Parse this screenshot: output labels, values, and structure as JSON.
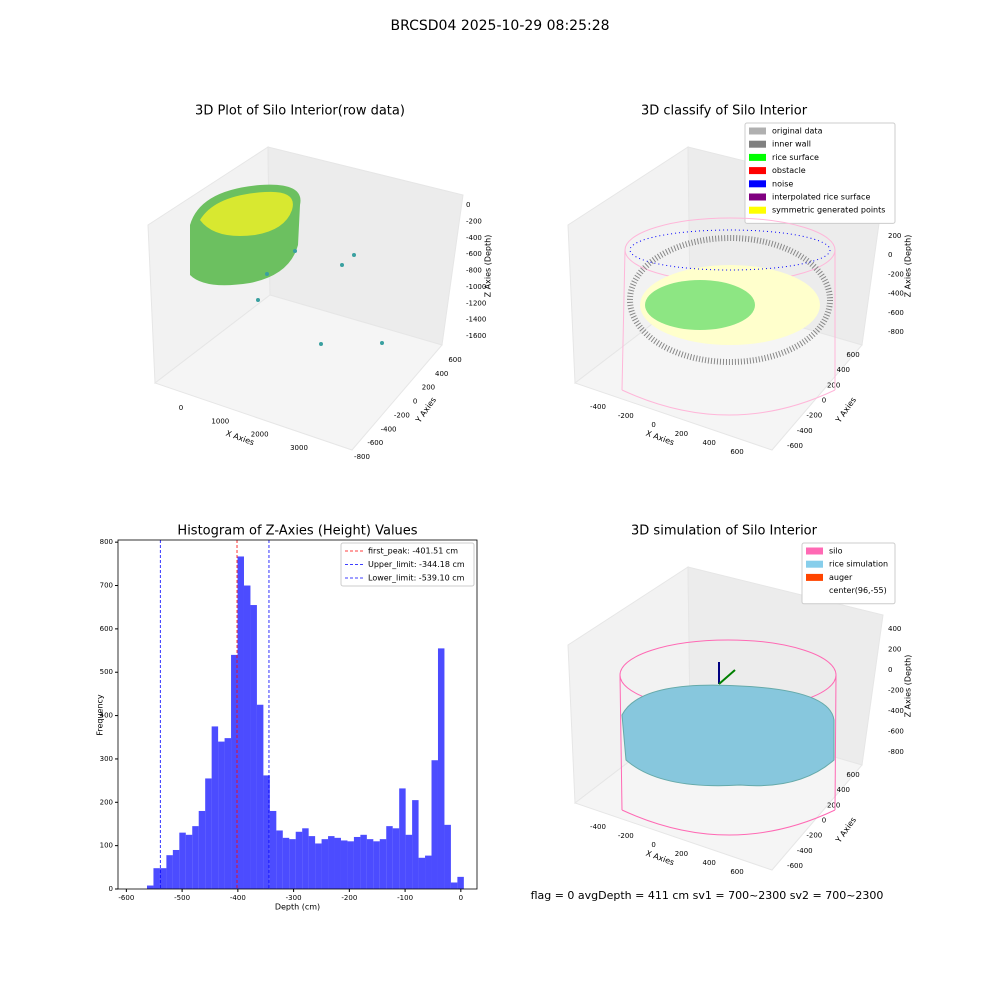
{
  "title": "BRCSD04 2025-10-29 08:25:28",
  "status_text": "flag = 0     avgDepth = 411 cm  sv1 = 700~2300  sv2 = 700~2300",
  "chart_data": [
    {
      "type": "scatter3d",
      "title": "3D Plot of Silo Interior(row data)",
      "xlabel": "X Axies",
      "ylabel": "Y Axies",
      "zlabel": "Z Axies (Depth)",
      "xticks": [
        0,
        1000,
        2000,
        3000
      ],
      "yticks": [
        -800,
        -600,
        -400,
        -200,
        0,
        200,
        400,
        600
      ],
      "zticks": [
        0,
        -200,
        -400,
        -600,
        -800,
        -1000,
        -1200,
        -1400,
        -1600
      ]
    },
    {
      "type": "scatter3d",
      "title": "3D classify of Silo Interior",
      "xlabel": "X Axies",
      "ylabel": "Y Axies",
      "zlabel": "Z Axies (Depth)",
      "xticks": [
        -400,
        -200,
        0,
        200,
        400,
        600
      ],
      "yticks": [
        -600,
        -400,
        -200,
        0,
        200,
        400,
        600
      ],
      "zticks": [
        200,
        0,
        -200,
        -400,
        -600,
        -800
      ],
      "legend": [
        {
          "name": "original data",
          "color": "#b0b0b0"
        },
        {
          "name": "inner wall",
          "color": "#808080"
        },
        {
          "name": "rice surface",
          "color": "#00ff00"
        },
        {
          "name": "obstacle",
          "color": "#ff0000"
        },
        {
          "name": "noise",
          "color": "#0000ff"
        },
        {
          "name": "interpolated rice surface",
          "color": "#800080"
        },
        {
          "name": "symmetric generated points",
          "color": "#ffff00"
        }
      ]
    },
    {
      "type": "histogram",
      "title": "Histogram of Z-Axies (Height) Values",
      "xlabel": "Depth (cm)",
      "ylabel": "Frequency",
      "color": "#0000ff",
      "bins": [
        -563,
        -551.4,
        -539.8,
        -528.2,
        -516.6,
        -505,
        -493.4,
        -481.8,
        -470.2,
        -458.6,
        -447,
        -435.4,
        -423.8,
        -412.2,
        -400.6,
        -389,
        -377.4,
        -365.8,
        -354.2,
        -342.6,
        -331,
        -319.4,
        -307.8,
        -296.2,
        -284.6,
        -273,
        -261.4,
        -249.8,
        -238.2,
        -226.6,
        -215,
        -203.4,
        -191.8,
        -180.2,
        -168.6,
        -157,
        -145.4,
        -133.8,
        -122.2,
        -110.6,
        -99,
        -87.4,
        -75.8,
        -64.2,
        -52.6,
        -41,
        -29.4,
        -17.8,
        -6.2,
        5.4
      ],
      "values": [
        8,
        48,
        48,
        78,
        90,
        130,
        125,
        145,
        180,
        255,
        375,
        340,
        348,
        540,
        767,
        700,
        655,
        425,
        262,
        180,
        135,
        118,
        115,
        132,
        140,
        122,
        105,
        115,
        122,
        118,
        112,
        110,
        120,
        125,
        115,
        110,
        115,
        145,
        140,
        232,
        125,
        205,
        72,
        77,
        297,
        555,
        148,
        15,
        28
      ],
      "xlim": [
        -615,
        29
      ],
      "ylim": [
        0,
        805
      ],
      "xticks": [
        -600,
        -500,
        -400,
        -300,
        -200,
        -100,
        0
      ],
      "yticks": [
        0,
        100,
        200,
        300,
        400,
        500,
        600,
        700,
        800
      ],
      "lines": [
        {
          "name": "first_peak: -401.51 cm",
          "value": -401.51,
          "color": "#ff0000"
        },
        {
          "name": "Upper_limit: -344.18 cm",
          "value": -344.18,
          "color": "#0000ff"
        },
        {
          "name": "Lower_limit: -539.10 cm",
          "value": -539.1,
          "color": "#0000ff"
        }
      ],
      "legend_position": "upper right"
    },
    {
      "type": "surface3d",
      "title": "3D simulation of Silo Interior",
      "xlabel": "X Axies",
      "ylabel": "Y Axies",
      "zlabel": "Z Axies (Depth)",
      "xticks": [
        -400,
        -200,
        0,
        200,
        400,
        600
      ],
      "yticks": [
        -600,
        -400,
        -200,
        0,
        200,
        400,
        600
      ],
      "zticks": [
        400,
        200,
        0,
        -200,
        -400,
        -600,
        -800
      ],
      "legend": [
        {
          "name": "silo",
          "color": "#ff69b4"
        },
        {
          "name": "rice simulation",
          "color": "#87ceeb"
        },
        {
          "name": "auger",
          "color": "#ff4500"
        },
        {
          "name": "center(96,-55)",
          "color": "#ffffff"
        }
      ]
    }
  ]
}
